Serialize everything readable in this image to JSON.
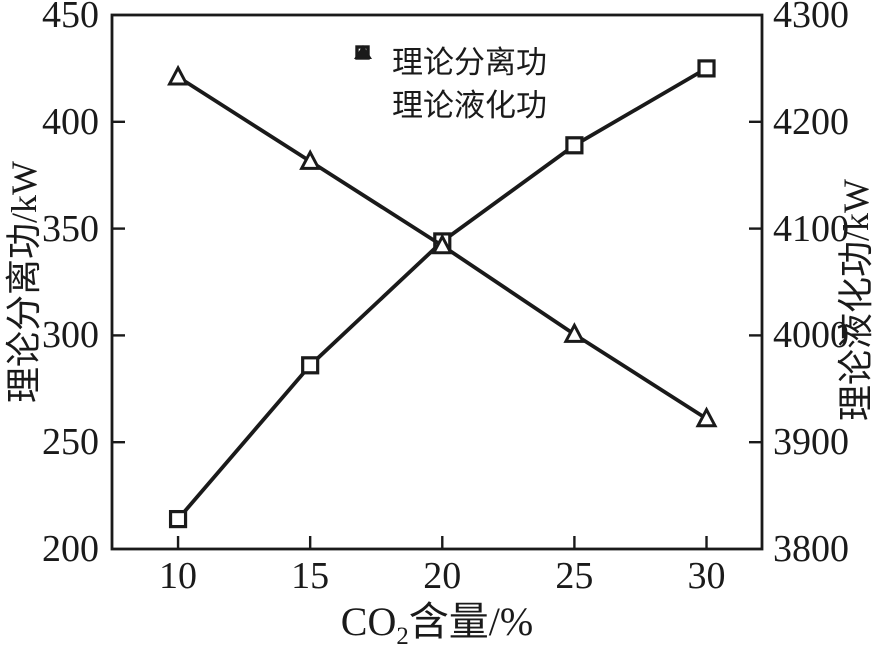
{
  "chart_data": {
    "type": "line",
    "title": "",
    "x": [
      10,
      15,
      20,
      25,
      30
    ],
    "x_tick_labels": [
      "10",
      "15",
      "20",
      "25",
      "30"
    ],
    "xlim": [
      7.5,
      32.1
    ],
    "xlabel_text": "CO2含量/%",
    "xlabel_parts": {
      "prefix": "CO",
      "sub": "2",
      "suffix": "含量/%"
    },
    "left_axis": {
      "label": "理论分离功/kW",
      "ticks": [
        200,
        250,
        300,
        350,
        400,
        450
      ],
      "lim": [
        200,
        450
      ]
    },
    "right_axis": {
      "label": "理论液化功/kW",
      "ticks": [
        3800,
        3900,
        4000,
        4100,
        4200,
        4300
      ],
      "lim": [
        3800,
        4300
      ]
    },
    "series": [
      {
        "name": "理论分离功",
        "marker": "square",
        "axis": "left",
        "x": [
          10,
          15,
          20,
          25,
          30
        ],
        "values": [
          214,
          286,
          344,
          389,
          425
        ]
      },
      {
        "name": "理论液化功",
        "marker": "triangle",
        "axis": "right",
        "x": [
          10,
          15,
          20,
          25,
          30
        ],
        "values": [
          4242,
          4163,
          4084,
          4001,
          3922
        ]
      }
    ],
    "legend": {
      "position": "upper-center-inside",
      "items": [
        {
          "label": "理论分离功",
          "marker": "square",
          "icon": "square-marker-icon"
        },
        {
          "label": "理论液化功",
          "marker": "triangle",
          "icon": "triangle-marker-icon"
        }
      ]
    },
    "grid": false,
    "colors": {
      "line": "#1a1a1a",
      "background": "#ffffff",
      "marker_fill": "#ffffff"
    }
  }
}
